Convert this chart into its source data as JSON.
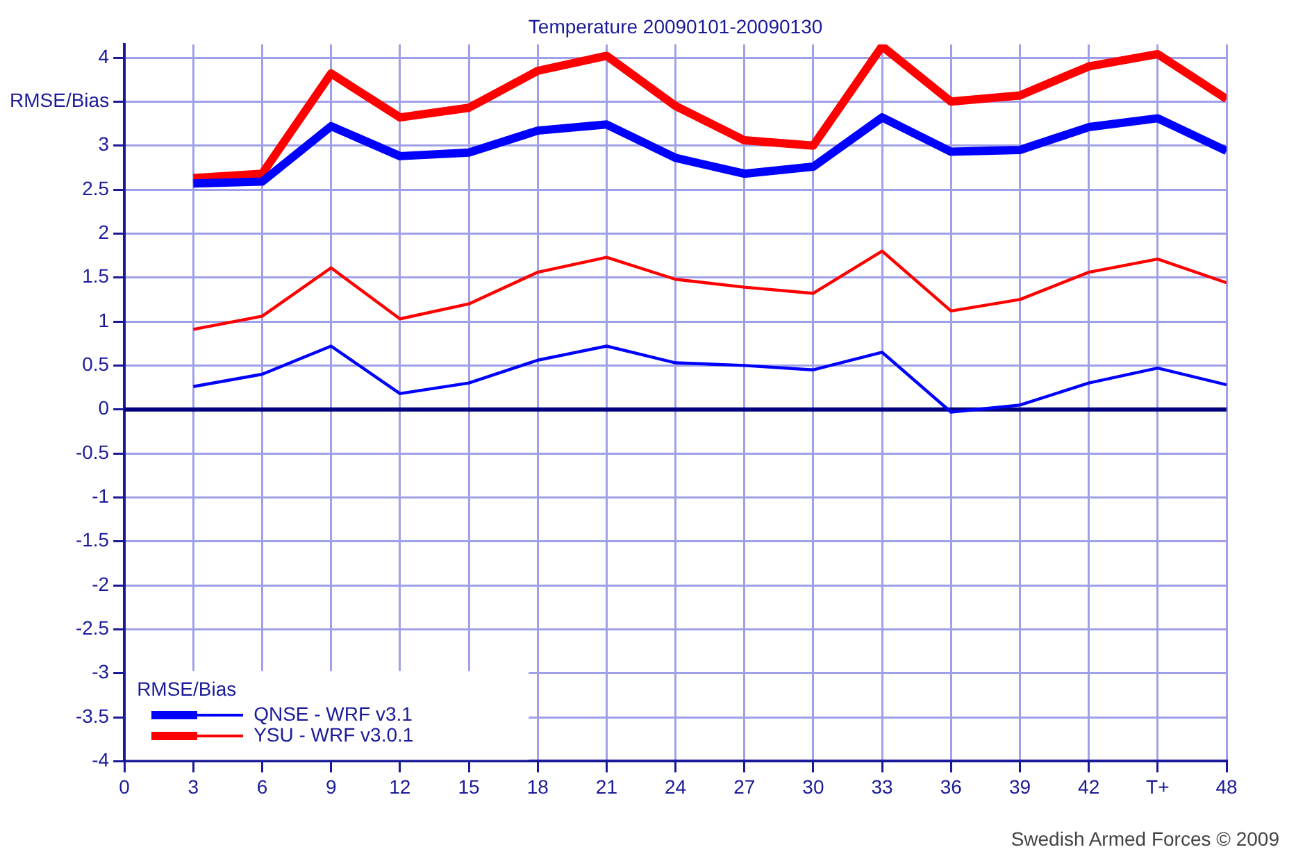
{
  "chart_data": {
    "type": "line",
    "title": "Temperature 20090101-20090130",
    "x": [
      3,
      6,
      9,
      12,
      15,
      18,
      21,
      24,
      27,
      30,
      33,
      36,
      39,
      42,
      45,
      48
    ],
    "series": [
      {
        "name": "QNSE - WRF v3.1",
        "color": "#0000ff",
        "values": [
          2.57,
          2.59,
          3.22,
          2.88,
          2.92,
          3.17,
          3.24,
          2.86,
          2.68,
          2.76,
          3.32,
          2.93,
          2.95,
          3.21,
          3.31,
          2.94
        ]
      },
      {
        "name": "YSU - WRF v3.0.1",
        "color": "#ff0000",
        "values": [
          2.63,
          2.68,
          3.82,
          3.32,
          3.43,
          3.85,
          4.02,
          3.45,
          3.06,
          3.0,
          4.13,
          3.5,
          3.57,
          3.9,
          4.04,
          3.53
        ]
      },
      {
        "color": "#ff0000",
        "values": [
          0.91,
          1.06,
          1.61,
          1.03,
          1.2,
          1.56,
          1.73,
          1.48,
          1.39,
          1.32,
          1.8,
          1.12,
          1.25,
          1.56,
          1.71,
          1.44
        ]
      },
      {
        "color": "#0000ff",
        "values": [
          0.26,
          0.4,
          0.72,
          0.18,
          0.3,
          0.56,
          0.72,
          0.53,
          0.5,
          0.45,
          0.65,
          -0.03,
          0.05,
          0.3,
          0.47,
          0.28
        ]
      }
    ],
    "xlim": [
      0,
      48
    ],
    "xticks": [
      0,
      3,
      6,
      9,
      12,
      15,
      18,
      21,
      24,
      27,
      30,
      33,
      36,
      39,
      42,
      {
        "value": 45,
        "label": "T+"
      },
      48
    ],
    "ylim": [
      -4,
      4.15
    ],
    "yticks": [
      -4,
      -3.5,
      -3,
      -2.5,
      -2,
      -1.5,
      -1,
      -0.5,
      0,
      0.5,
      1,
      1.5,
      2,
      2.5,
      3,
      {
        "value": 3.5,
        "label": "RMSE/Bias"
      },
      4
    ],
    "ref_lines": [
      {
        "axis": "y",
        "value": 0,
        "color": "#000080"
      }
    ],
    "grid": true,
    "legend": "bottom left",
    "legend_title": "RMSE/Bias",
    "marker": "none",
    "line_style": "solid",
    "annotations": [
      "Swedish Armed Forces © 2009"
    ]
  }
}
